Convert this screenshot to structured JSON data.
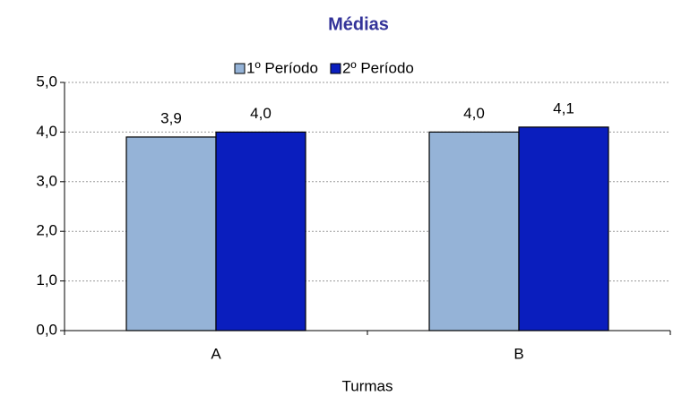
{
  "chart_data": {
    "type": "bar",
    "title": "Médias",
    "x_label": "Turmas",
    "categories": [
      "A",
      "B"
    ],
    "series": [
      {
        "name": "1º Período",
        "color": "#95b3d7",
        "values": [
          3.9,
          4.0
        ],
        "value_labels": [
          "3,9",
          "4,0"
        ]
      },
      {
        "name": "2º Período",
        "color": "#0a1ebe",
        "values": [
          4.0,
          4.1
        ],
        "value_labels": [
          "4,0",
          "4,1"
        ]
      }
    ],
    "ylim": [
      0,
      5
    ],
    "yticks": [
      {
        "value": 0,
        "label": "0,0"
      },
      {
        "value": 1,
        "label": "1,0"
      },
      {
        "value": 2,
        "label": "2,0"
      },
      {
        "value": 3,
        "label": "3,0"
      },
      {
        "value": 4,
        "label": "4,0"
      },
      {
        "value": 5,
        "label": "5,0"
      }
    ],
    "grid": true,
    "legend": "top"
  }
}
